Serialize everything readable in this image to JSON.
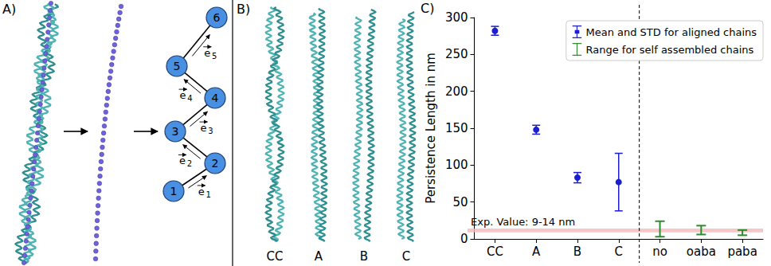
{
  "panel_labels": [
    "A)",
    "B)",
    "C)"
  ],
  "panel_a": {
    "nodes": [
      "1",
      "2",
      "3",
      "4",
      "5",
      "6"
    ],
    "vectors": [
      {
        "symbol": "e",
        "index": "1"
      },
      {
        "symbol": "e",
        "index": "2"
      },
      {
        "symbol": "e",
        "index": "3"
      },
      {
        "symbol": "e",
        "index": "4"
      },
      {
        "symbol": "e",
        "index": "5"
      }
    ]
  },
  "panel_b": {
    "labels": [
      "CC",
      "A",
      "B",
      "C"
    ]
  },
  "chart_data": {
    "type": "errorbar",
    "y_label": "Persistence Length in nm",
    "categories": [
      "CC",
      "A",
      "B",
      "C",
      "no",
      "oaba",
      "paba"
    ],
    "series": [
      {
        "name": "Mean and STD for aligned chains",
        "color": "#1c1cd0",
        "marker": "circle",
        "values": [
          282,
          148,
          83,
          77,
          null,
          null,
          null
        ],
        "std": [
          6,
          6,
          7,
          39,
          null,
          null,
          null
        ]
      },
      {
        "name": "Range for self assembled chains",
        "color": "#2e8b2e",
        "low": [
          null,
          null,
          null,
          null,
          3,
          6,
          5
        ],
        "high": [
          null,
          null,
          null,
          null,
          24,
          18,
          12
        ]
      }
    ],
    "reference": {
      "label": "Exp. Value: 9-14 nm",
      "low": 9,
      "high": 14,
      "color": "#f6b8b8"
    },
    "ylim": [
      0,
      300
    ],
    "yticks": [
      0,
      50,
      100,
      150,
      200,
      250,
      300
    ],
    "legend": "upper right",
    "grid": false
  }
}
